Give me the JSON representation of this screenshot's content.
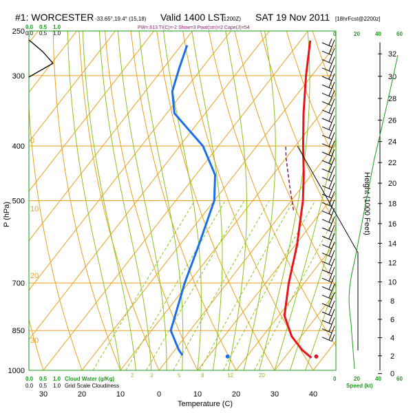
{
  "header": {
    "title_left": "#1: WORCESTER",
    "coords": "-33.65°,19.4° (15,18)",
    "valid": "Valid 1400 LST",
    "utc": "(1200Z)",
    "date": "SAT 19 Nov 2011",
    "fcst": "[18hrFcst@2200z]",
    "indices": "PW=.613  TI(C)=-2  Show=3  Pwat(cm)=2  Cape(J)=54"
  },
  "left_scale_labels": {
    "top_green": [
      "0.0",
      "0.5",
      "1.0"
    ],
    "top_black": [
      "0.0",
      "0.5",
      "1.0"
    ],
    "bottom_green": [
      "0.0",
      "0.5",
      "1.0",
      "Cloud Water (g/Kg)"
    ],
    "bottom_black": [
      "0.0",
      "0.5",
      "1.0",
      "Grid Scale Cloudiness"
    ]
  },
  "right_scale_labels": {
    "top_green": [
      "0",
      "20",
      "40",
      "60"
    ],
    "bottom_green": [
      "0",
      "20",
      "40",
      "60"
    ],
    "speed_label": "Speed (kt)"
  },
  "axes": {
    "xlabel": "Temperature (C)",
    "ylabel": "P (hPa)",
    "y2label": "Height (1000 Feet)"
  },
  "chart_data": {
    "type": "line",
    "title": "#1: WORCESTER",
    "xlabel": "Temperature (C)",
    "ylabel": "P (hPa)",
    "y2label": "Height (1000 Feet)",
    "xlim": [
      -35,
      45
    ],
    "ylim_pressure": [
      1000,
      250
    ],
    "pressure_ticks": [
      250,
      300,
      400,
      500,
      700,
      850,
      1000
    ],
    "temperature_ticks": [
      30,
      20,
      10,
      0,
      10,
      20,
      30,
      40
    ],
    "temperature_tick_values": [
      -30,
      -20,
      -10,
      0,
      10,
      20,
      30,
      40
    ],
    "height_ticks_kft": [
      0,
      2,
      4,
      6,
      8,
      10,
      12,
      14,
      16,
      18,
      20,
      22,
      24,
      26,
      28,
      30,
      32
    ],
    "series": [
      {
        "name": "Temperature",
        "color": "#e8141c",
        "points": [
          [
            950,
            37.0
          ],
          [
            920,
            33.0
          ],
          [
            870,
            27.5
          ],
          [
            800,
            21.5
          ],
          [
            700,
            16.0
          ],
          [
            600,
            10.5
          ],
          [
            500,
            3.0
          ],
          [
            450,
            -2.0
          ],
          [
            400,
            -8.0
          ],
          [
            350,
            -14.5
          ],
          [
            300,
            -21.5
          ],
          [
            260,
            -27.5
          ]
        ]
      },
      {
        "name": "Dewpoint",
        "color": "#1a6ee8",
        "points": [
          [
            940,
            3.0
          ],
          [
            920,
            1.0
          ],
          [
            850,
            -5.0
          ],
          [
            700,
            -11.0
          ],
          [
            600,
            -15.0
          ],
          [
            500,
            -20.0
          ],
          [
            450,
            -25.0
          ],
          [
            400,
            -34.0
          ],
          [
            350,
            -48.0
          ],
          [
            320,
            -53.0
          ],
          [
            290,
            -56.0
          ],
          [
            265,
            -58.5
          ]
        ]
      },
      {
        "name": "Parcel",
        "color": "#8b1a6b",
        "dashed": true,
        "points": [
          [
            520,
            2.5
          ],
          [
            470,
            -3.5
          ],
          [
            420,
            -10.0
          ],
          [
            400,
            -12.5
          ]
        ]
      }
    ],
    "surface_points": [
      {
        "name": "Surface T",
        "color": "#e8141c",
        "p": 945,
        "t": 38.0
      },
      {
        "name": "Surface Td",
        "color": "#1a6ee8",
        "p": 945,
        "t": 15.0
      }
    ],
    "isotherm_labels": [
      "0",
      "10",
      "20",
      "30"
    ],
    "mixing_ratio_labels": [
      "2",
      "3",
      "5",
      "8",
      "12",
      "20"
    ],
    "dry_adiabat_labels": [
      "0",
      "10",
      "20",
      "30"
    ],
    "wind_barbs": {
      "count": 36,
      "direction": "westerly"
    },
    "grid": true,
    "legend": "none"
  }
}
